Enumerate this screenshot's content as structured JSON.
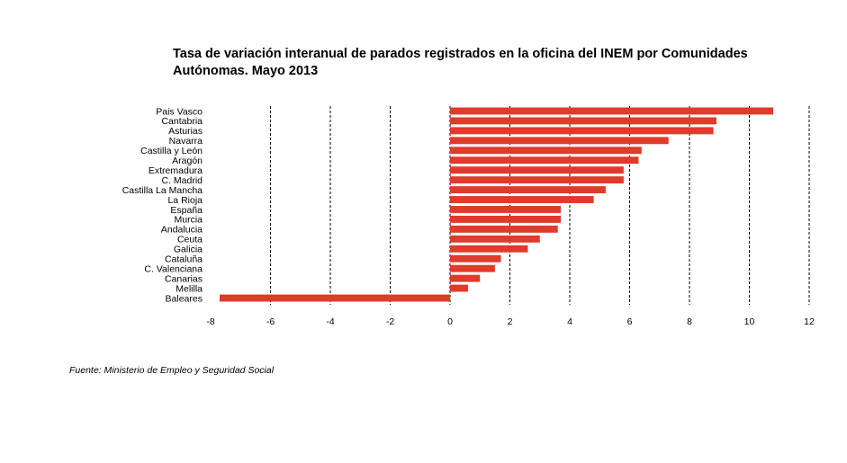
{
  "chart_data": {
    "type": "bar",
    "orientation": "horizontal",
    "title_line1": "Tasa de variación interanual de parados registrados en la oficina del INEM por Comunidades",
    "title_line2": "Autónomas.  Mayo 2013",
    "categories": [
      "Pais Vasco",
      "Cantabria",
      "Asturias",
      "Navarra",
      "Castilla y León",
      "Aragón",
      "Extremadura",
      "C. Madrid",
      "Castilla La Mancha",
      "La Rioja",
      "España",
      "Murcia",
      "Andalucia",
      "Ceuta",
      "Galicia",
      "Cataluña",
      "C. Valenciana",
      "Canarias",
      "Melilla",
      "Baleares"
    ],
    "values": [
      10.8,
      8.9,
      8.8,
      7.3,
      6.4,
      6.3,
      5.8,
      5.8,
      5.2,
      4.8,
      3.7,
      3.7,
      3.6,
      3.0,
      2.6,
      1.7,
      1.5,
      1.0,
      0.6,
      -7.7
    ],
    "xlim": [
      -8,
      12
    ],
    "xticks": [
      -8,
      -6,
      -4,
      -2,
      0,
      2,
      4,
      6,
      8,
      10,
      12
    ],
    "grid": "vertical-dashed",
    "legend": "none",
    "bar_color": "#e03a2a",
    "source": "Fuente: Ministerio de Empleo y Seguridad Social"
  }
}
